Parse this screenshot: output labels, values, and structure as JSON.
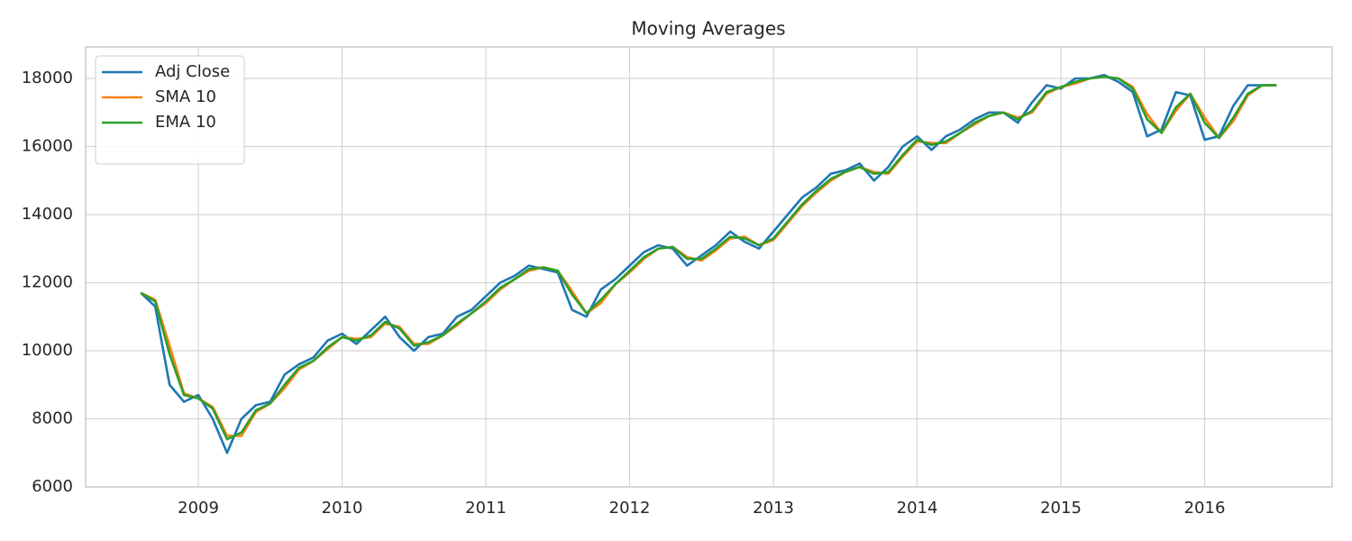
{
  "chart_data": {
    "type": "line",
    "title": "Moving Averages",
    "x": [
      2008.6,
      2008.7,
      2008.8,
      2008.9,
      2009.0,
      2009.1,
      2009.2,
      2009.3,
      2009.4,
      2009.5,
      2009.6,
      2009.7,
      2009.8,
      2009.9,
      2010.0,
      2010.1,
      2010.2,
      2010.3,
      2010.4,
      2010.5,
      2010.6,
      2010.7,
      2010.8,
      2010.9,
      2011.0,
      2011.1,
      2011.2,
      2011.3,
      2011.4,
      2011.5,
      2011.6,
      2011.7,
      2011.8,
      2011.9,
      2012.0,
      2012.1,
      2012.2,
      2012.3,
      2012.4,
      2012.5,
      2012.6,
      2012.7,
      2012.8,
      2012.9,
      2013.0,
      2013.1,
      2013.2,
      2013.3,
      2013.4,
      2013.5,
      2013.6,
      2013.7,
      2013.8,
      2013.9,
      2014.0,
      2014.1,
      2014.2,
      2014.3,
      2014.4,
      2014.5,
      2014.6,
      2014.7,
      2014.8,
      2014.9,
      2015.0,
      2015.1,
      2015.2,
      2015.3,
      2015.4,
      2015.5,
      2015.6,
      2015.7,
      2015.8,
      2015.9,
      2016.0,
      2016.1,
      2016.2,
      2016.3,
      2016.4,
      2016.5
    ],
    "series": [
      {
        "name": "Adj Close",
        "color": "#1f77b4",
        "values": [
          11700,
          11300,
          9000,
          8500,
          8700,
          8000,
          7000,
          8000,
          8400,
          8500,
          9300,
          9600,
          9800,
          10300,
          10500,
          10200,
          10600,
          11000,
          10400,
          10000,
          10400,
          10500,
          11000,
          11200,
          11600,
          12000,
          12200,
          12500,
          12400,
          12300,
          11200,
          11000,
          11800,
          12100,
          12500,
          12900,
          13100,
          13000,
          12500,
          12800,
          13100,
          13500,
          13200,
          13000,
          13500,
          14000,
          14500,
          14800,
          15200,
          15300,
          15500,
          15000,
          15400,
          16000,
          16300,
          15900,
          16300,
          16500,
          16800,
          17000,
          17000,
          16700,
          17300,
          17800,
          17700,
          18000,
          18000,
          18100,
          17900,
          17600,
          16300,
          16500,
          17600,
          17500,
          16200,
          16300,
          17200,
          17800,
          17800,
          17800
        ]
      },
      {
        "name": "SMA 10",
        "color": "#ff7f0e",
        "values": [
          11700,
          11500,
          10150,
          8750,
          8600,
          8350,
          7500,
          7500,
          8200,
          8450,
          8900,
          9450,
          9700,
          10050,
          10400,
          10350,
          10400,
          10800,
          10700,
          10200,
          10200,
          10450,
          10750,
          11100,
          11400,
          11800,
          12100,
          12350,
          12450,
          12350,
          11750,
          11100,
          11400,
          11950,
          12300,
          12700,
          13000,
          13050,
          12750,
          12650,
          12950,
          13300,
          13350,
          13100,
          13250,
          13750,
          14250,
          14650,
          15000,
          15250,
          15400,
          15250,
          15200,
          15700,
          16150,
          16100,
          16100,
          16400,
          16650,
          16900,
          17000,
          16850,
          17000,
          17550,
          17750,
          17850,
          18000,
          18050,
          18000,
          17750,
          16950,
          16400,
          17050,
          17550,
          16850,
          16250,
          16750,
          17500,
          17800,
          17800
        ]
      },
      {
        "name": "EMA 10",
        "color": "#2ca02c",
        "values": [
          11700,
          11450,
          9900,
          8700,
          8600,
          8300,
          7400,
          7600,
          8250,
          8450,
          9000,
          9500,
          9700,
          10100,
          10400,
          10300,
          10450,
          10850,
          10650,
          10150,
          10250,
          10450,
          10800,
          11100,
          11450,
          11850,
          12100,
          12400,
          12450,
          12350,
          11650,
          11100,
          11500,
          11950,
          12350,
          12750,
          13000,
          13050,
          12700,
          12700,
          13000,
          13350,
          13300,
          13100,
          13300,
          13800,
          14300,
          14700,
          15050,
          15250,
          15400,
          15200,
          15250,
          15750,
          16200,
          16050,
          16150,
          16400,
          16700,
          16900,
          17000,
          16800,
          17050,
          17600,
          17750,
          17900,
          18000,
          18050,
          18000,
          17700,
          16800,
          16400,
          17150,
          17550,
          16700,
          16250,
          16850,
          17550,
          17800,
          17800
        ]
      }
    ],
    "xlim": [
      2008.216,
      2016.887
    ],
    "xticks": [
      2009,
      2010,
      2011,
      2012,
      2013,
      2014,
      2015,
      2016
    ],
    "ylim": [
      6000,
      18927
    ],
    "yticks": [
      6000,
      8000,
      10000,
      12000,
      14000,
      16000,
      18000
    ],
    "grid": true,
    "legend": "upper-left"
  }
}
